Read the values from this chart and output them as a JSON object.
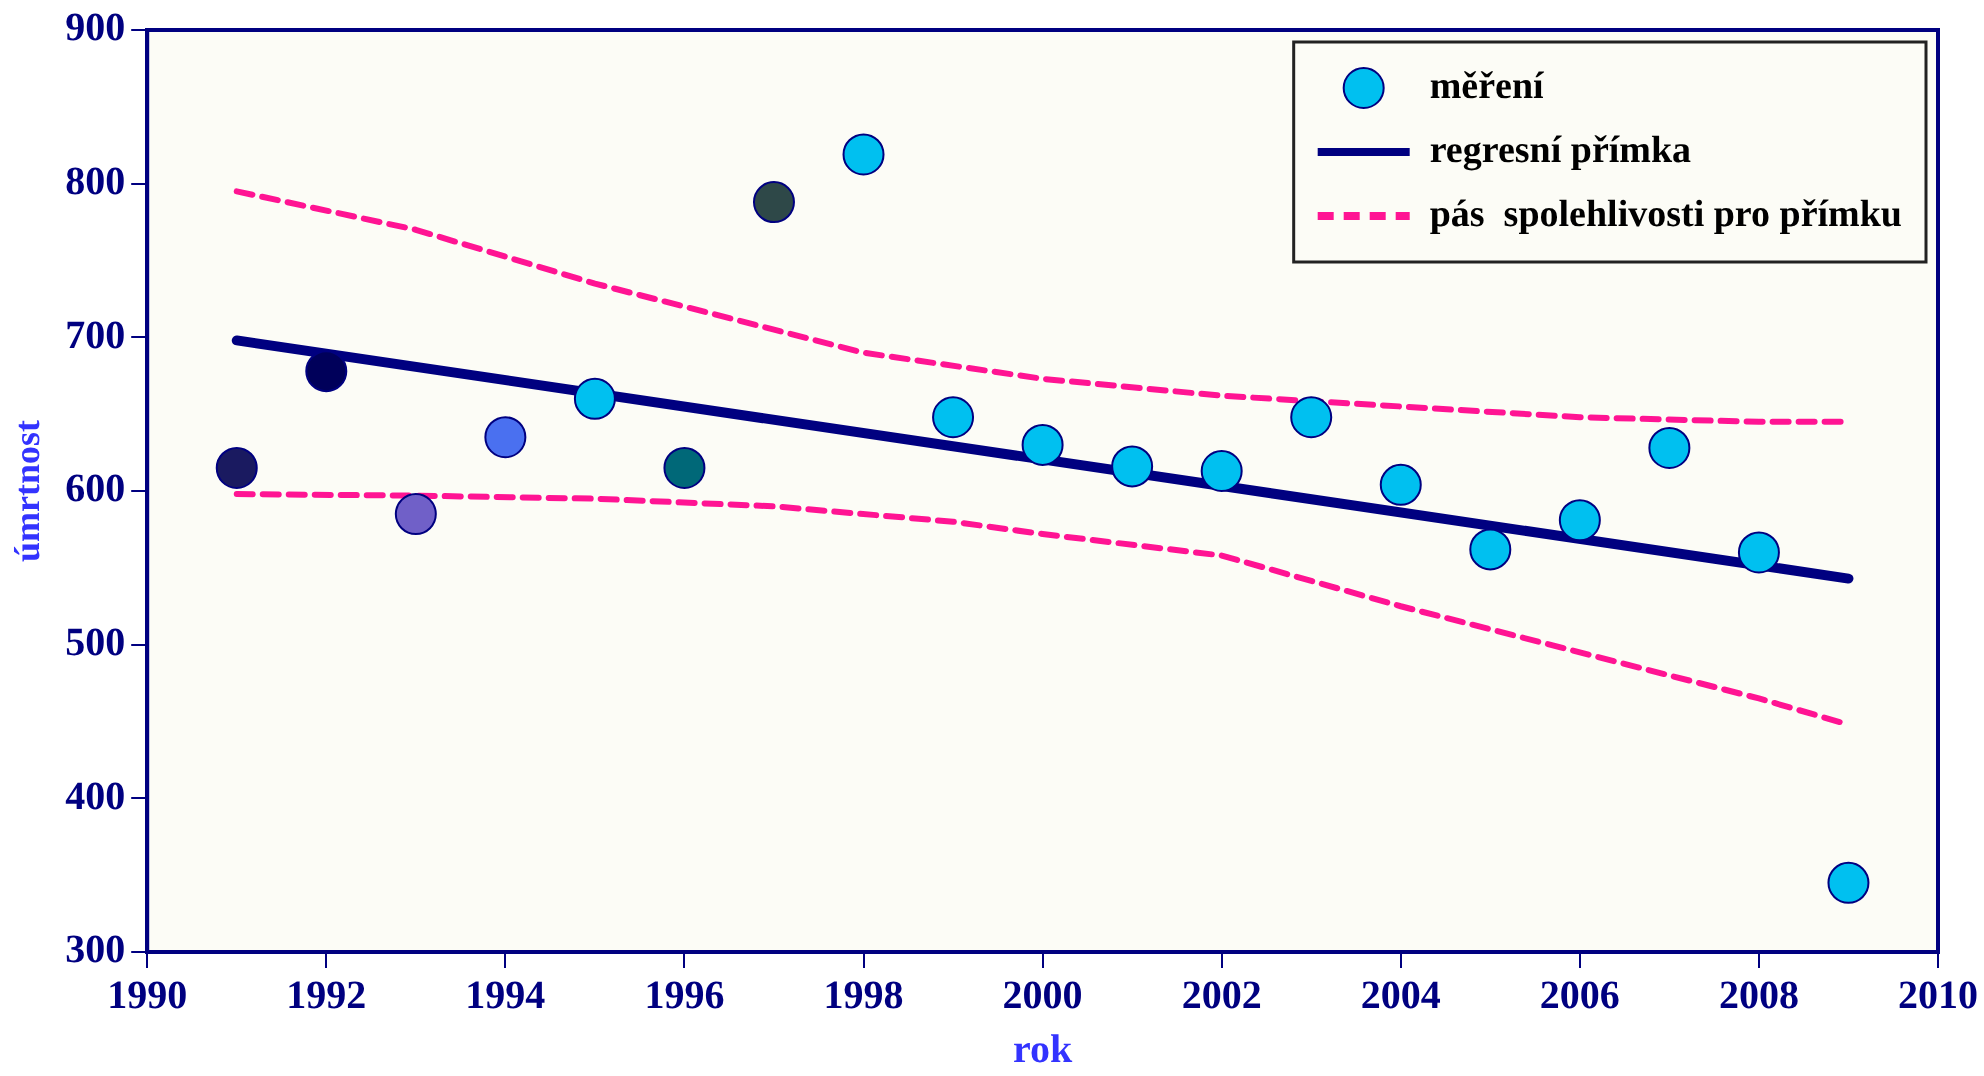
{
  "chart_data": {
    "type": "scatter",
    "xlabel": "rok",
    "ylabel": "úmrtnost",
    "xlim": [
      1990,
      2010
    ],
    "xticks": [
      1990,
      1992,
      1994,
      1996,
      1998,
      2000,
      2002,
      2004,
      2006,
      2008,
      2010
    ],
    "ylim": [
      300,
      900
    ],
    "yticks": [
      300,
      400,
      500,
      600,
      700,
      800,
      900
    ],
    "grid": false,
    "legend": "top right",
    "series": [
      {
        "name": "měření",
        "color": "#00c0f0",
        "marker": "circle",
        "x": [
          1991,
          1992,
          1993,
          1994,
          1995,
          1996,
          1997,
          1998,
          1999,
          2000,
          2001,
          2002,
          2003,
          2004,
          2005,
          2006,
          2007,
          2008,
          2009
        ],
        "values": [
          615,
          678,
          585,
          635,
          660,
          615,
          788,
          819,
          648,
          630,
          616,
          613,
          648,
          604,
          562,
          581,
          628,
          560,
          345
        ],
        "colors": [
          "#1a1a60",
          "#00005a",
          "#7060c8",
          "#4a70f0",
          "#00c0f0",
          "#006878",
          "#2e4848",
          "#00c0f0",
          "#00c0f0",
          "#00c0f0",
          "#00c0f0",
          "#00c0f0",
          "#00c0f0",
          "#00c0f0",
          "#00c0f0",
          "#00c0f0",
          "#00c0f0",
          "#00c0f0",
          "#00c0f0"
        ]
      },
      {
        "type": "line",
        "name": "regresní přímka",
        "color": "#000080",
        "marker": "none",
        "line_style": "solid",
        "x": [
          1991,
          2009
        ],
        "values": [
          698,
          543
        ]
      },
      {
        "type": "line",
        "name": "pás  spolehlivosti pro přímku",
        "color": "#ff1493",
        "marker": "none",
        "line_style": "dashed",
        "x": [
          1991,
          1993,
          1995,
          1997,
          1998,
          2000,
          2002,
          2004,
          2006,
          2008,
          2009
        ],
        "values": [
          795,
          770,
          735,
          705,
          690,
          673,
          662,
          655,
          648,
          645,
          645
        ]
      },
      {
        "type": "line",
        "color": "#ff1493",
        "marker": "none",
        "line_style": "dashed",
        "x": [
          1991,
          1993,
          1995,
          1997,
          1999,
          2000,
          2002,
          2004,
          2006,
          2008,
          2009
        ],
        "values": [
          598,
          597,
          595,
          590,
          580,
          572,
          558,
          525,
          495,
          465,
          448
        ]
      }
    ]
  }
}
